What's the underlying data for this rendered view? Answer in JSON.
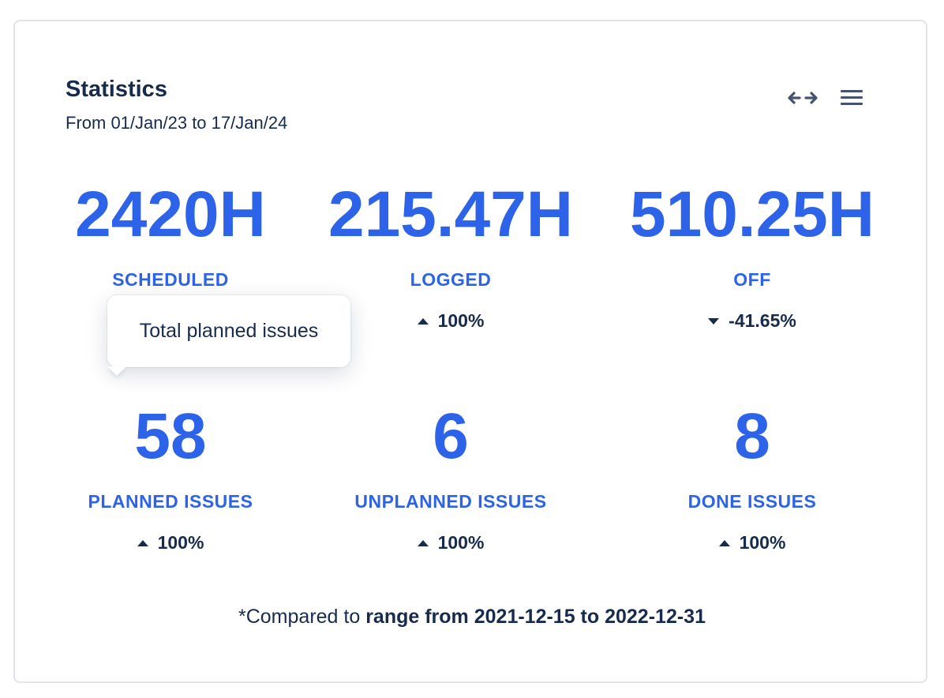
{
  "header": {
    "title": "Statistics",
    "subtitle": "From 01/Jan/23 to 17/Jan/24",
    "expand_icon": "horizontal-arrows-icon",
    "menu_icon": "hamburger-menu-icon"
  },
  "stats": [
    {
      "value": "2420H",
      "label": "SCHEDULED",
      "change": ""
    },
    {
      "value": "215.47H",
      "label": "LOGGED",
      "change": "100%",
      "direction": "up"
    },
    {
      "value": "510.25H",
      "label": "OFF",
      "change": "-41.65%",
      "direction": "down"
    },
    {
      "value": "58",
      "label": "PLANNED ISSUES",
      "change": "100%",
      "direction": "up"
    },
    {
      "value": "6",
      "label": "UNPLANNED ISSUES",
      "change": "100%",
      "direction": "up"
    },
    {
      "value": "8",
      "label": "DONE ISSUES",
      "change": "100%",
      "direction": "up"
    }
  ],
  "tooltip": {
    "text": "Total planned issues"
  },
  "footnote": {
    "prefix": "*Compared to ",
    "range": "range from 2021-12-15 to 2022-12-31"
  },
  "colors": {
    "accent": "#2d63e8",
    "text": "#172b4d",
    "border": "#e2e4e9"
  }
}
